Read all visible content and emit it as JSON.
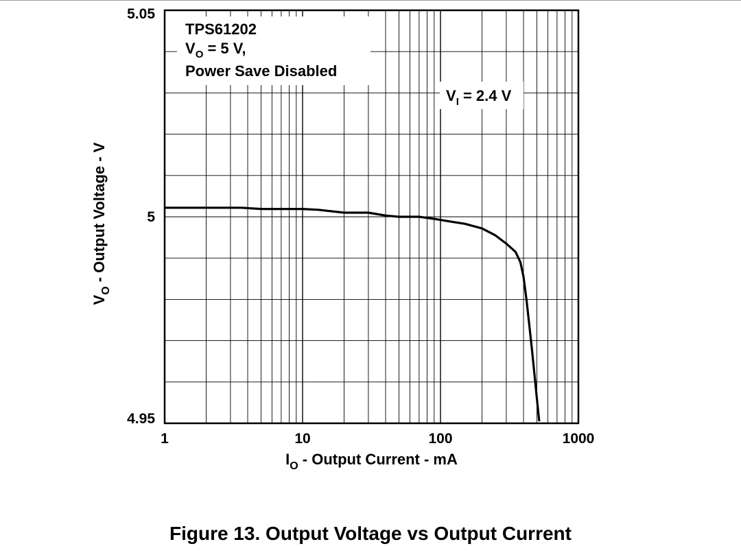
{
  "figure_caption": "Figure 13. Output Voltage vs Output Current",
  "chart_data": {
    "type": "line",
    "x_scale": "log",
    "y_scale": "linear",
    "xlim": [
      1,
      1000
    ],
    "ylim": [
      4.95,
      5.05
    ],
    "grid": true,
    "x_ticks": [
      "1",
      "10",
      "100",
      "1000"
    ],
    "y_ticks": [
      "5.05",
      "5",
      "4.95"
    ],
    "xlabel": {
      "main": "I",
      "sub": "O",
      "rest": " - Output Current - mA"
    },
    "ylabel": {
      "main": "V",
      "sub": "O",
      "rest": " - Output Voltage - V"
    },
    "annotations": {
      "device": "TPS61202",
      "vout_main": "V",
      "vout_sub": "O",
      "vout_rest": " = 5 V,",
      "mode": "Power Save Disabled",
      "vin_main": "V",
      "vin_sub": "I",
      "vin_rest": " = 2.4 V"
    },
    "series": [
      {
        "color": "#000000",
        "x": [
          1,
          2,
          3.6,
          5,
          10,
          13,
          20,
          30,
          40,
          50,
          70,
          90,
          120,
          150,
          200,
          250,
          300,
          350,
          380,
          400,
          420,
          440,
          460,
          480,
          500,
          520
        ],
        "y": [
          5.0022,
          5.0022,
          5.0022,
          5.0019,
          5.0019,
          5.0017,
          5.001,
          5.001,
          5.0003,
          5.0,
          5.0,
          4.9995,
          4.9988,
          4.9983,
          4.9972,
          4.9955,
          4.9935,
          4.9915,
          4.989,
          4.9855,
          4.98,
          4.974,
          4.968,
          4.962,
          4.956,
          4.9505
        ]
      }
    ]
  }
}
